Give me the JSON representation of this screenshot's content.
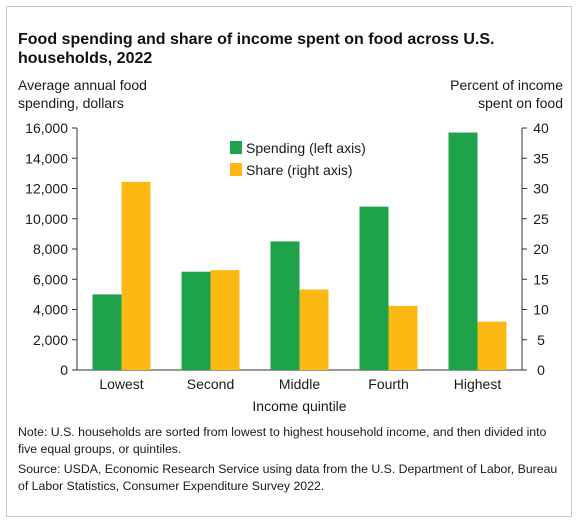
{
  "chart_data": {
    "type": "bar",
    "title": "Food spending and share of income spent on food across U.S. households, 2022",
    "ylabel_left": "Average annual food spending, dollars",
    "ylabel_right": "Percent of income spent on food",
    "xlabel": "Income quintile",
    "categories": [
      "Lowest",
      "Second",
      "Middle",
      "Fourth",
      "Highest"
    ],
    "ylim_left": [
      0,
      16000
    ],
    "ylim_right": [
      0,
      40
    ],
    "yticks_left": [
      "0",
      "2,000",
      "4,000",
      "6,000",
      "8,000",
      "10,000",
      "12,000",
      "14,000",
      "16,000"
    ],
    "yticks_right": [
      "0",
      "5",
      "10",
      "15",
      "20",
      "25",
      "30",
      "35",
      "40"
    ],
    "legend_position": "top-center",
    "grid": false,
    "series": [
      {
        "name": "Spending (left axis)",
        "axis": "left",
        "color": "#1fa34a",
        "values": [
          5000,
          6500,
          8500,
          10800,
          15700
        ]
      },
      {
        "name": "Share (right axis)",
        "axis": "right",
        "color": "#fcb813",
        "values": [
          31.1,
          16.5,
          13.3,
          10.6,
          8.0
        ]
      }
    ]
  },
  "note": "Note: U.S. households are sorted from lowest to highest household income, and then divided into five equal groups, or quintiles.",
  "source": "Source: USDA, Economic Research Service using data from the U.S. Department of Labor, Bureau of Labor Statistics, Consumer Expenditure Survey 2022."
}
